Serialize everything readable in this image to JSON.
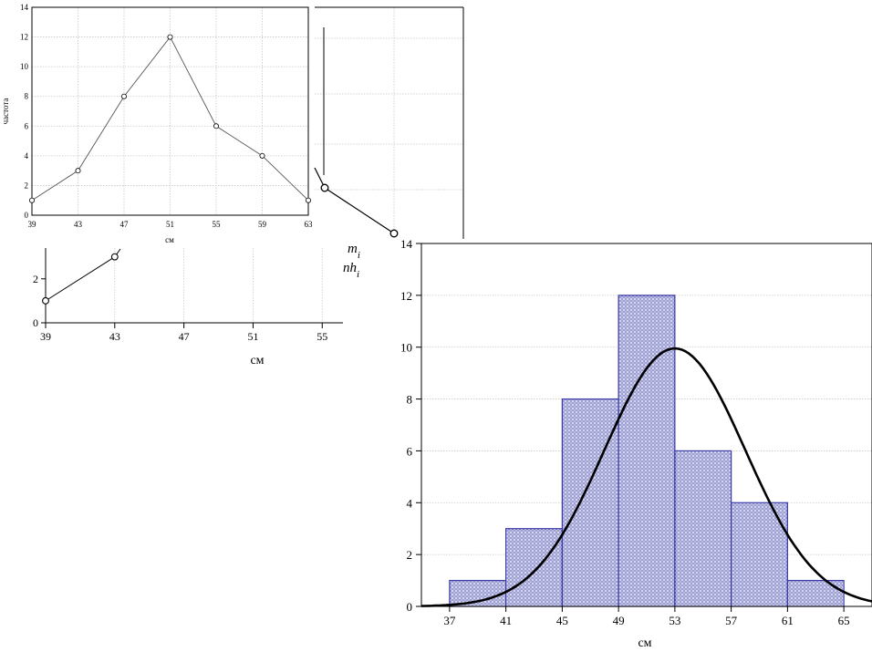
{
  "chart_data": [
    {
      "type": "line",
      "name": "frequency-polygon",
      "xlabel": "см",
      "ylabel": "частота",
      "x_ticks": [
        39,
        43,
        47,
        51,
        55,
        59,
        63
      ],
      "y_ticks": [
        0,
        2,
        4,
        6,
        8,
        10,
        12,
        14
      ],
      "xlim": [
        39,
        63
      ],
      "ylim": [
        0,
        14
      ],
      "grid": true,
      "x": [
        39,
        43,
        47,
        51,
        55,
        59,
        63
      ],
      "y": [
        1,
        3,
        8,
        12,
        6,
        4,
        1
      ]
    },
    {
      "type": "line",
      "name": "partial-polygon-fragment",
      "x_ticks": [],
      "y_ticks": [],
      "grid": true,
      "legend": [
        "m",
        "nh"
      ],
      "legend_subscript": "i",
      "legend_placement": "bottom-right"
    },
    {
      "type": "line",
      "name": "partial-polygon-bottom",
      "xlabel": "см",
      "x_ticks": [
        39,
        43,
        47,
        51,
        55
      ],
      "y_ticks": [
        0,
        2
      ],
      "xlim": [
        39,
        56.2
      ],
      "ylim": [
        0,
        3.4
      ],
      "grid": true,
      "x": [
        39,
        43
      ],
      "y": [
        1,
        3
      ]
    },
    {
      "type": "bar",
      "name": "histogram-with-normal-curve",
      "xlabel": "см",
      "x_ticks": [
        37,
        41,
        45,
        49,
        53,
        57,
        61,
        65
      ],
      "y_ticks": [
        0,
        2,
        4,
        6,
        8,
        10,
        12,
        14
      ],
      "xlim": [
        35,
        67
      ],
      "ylim": [
        0,
        14
      ],
      "grid": true,
      "bins": [
        {
          "from": 37,
          "to": 41,
          "value": 1
        },
        {
          "from": 41,
          "to": 45,
          "value": 3
        },
        {
          "from": 45,
          "to": 49,
          "value": 8
        },
        {
          "from": 49,
          "to": 53,
          "value": 12
        },
        {
          "from": 53,
          "to": 57,
          "value": 6
        },
        {
          "from": 57,
          "to": 61,
          "value": 4
        },
        {
          "from": 61,
          "to": 65,
          "value": 1
        }
      ],
      "curve": {
        "type": "normal",
        "mean": 53,
        "peak": 9.95,
        "sd": 5.0
      },
      "colors": {
        "bar_stroke": "#3a3aa8",
        "bar_fill": "#c9cde8",
        "curve": "#000000"
      }
    }
  ]
}
